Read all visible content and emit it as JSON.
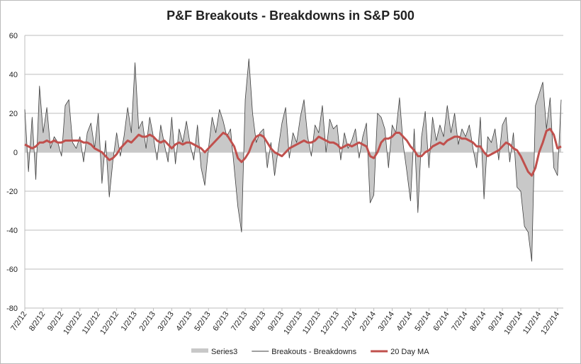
{
  "chart_data": {
    "type": "line",
    "title": "P&F Breakouts - Breakdowns in S&P 500",
    "categories": [
      "7/2/12",
      null,
      null,
      null,
      null,
      "8/2/12",
      null,
      null,
      null,
      null,
      "9/2/12",
      null,
      null,
      null,
      null,
      "10/2/12",
      null,
      null,
      null,
      null,
      "11/2/12",
      null,
      null,
      null,
      null,
      "12/2/12",
      null,
      null,
      null,
      null,
      "1/2/13",
      null,
      null,
      null,
      null,
      "2/2/13",
      null,
      null,
      null,
      null,
      "3/2/13",
      null,
      null,
      null,
      null,
      "4/2/13",
      null,
      null,
      null,
      null,
      "5/2/13",
      null,
      null,
      null,
      null,
      "6/2/13",
      null,
      null,
      null,
      null,
      "7/2/13",
      null,
      null,
      null,
      null,
      "8/2/13",
      null,
      null,
      null,
      null,
      "9/2/13",
      null,
      null,
      null,
      null,
      "10/2/13",
      null,
      null,
      null,
      null,
      "11/2/13",
      null,
      null,
      null,
      null,
      "12/2/13",
      null,
      null,
      null,
      null,
      "1/2/14",
      null,
      null,
      null,
      null,
      "2/2/14",
      null,
      null,
      null,
      null,
      "3/2/14",
      null,
      null,
      null,
      null,
      "4/2/14",
      null,
      null,
      null,
      null,
      "5/2/14",
      null,
      null,
      null,
      null,
      "6/2/14",
      null,
      null,
      null,
      null,
      "7/2/14",
      null,
      null,
      null,
      null,
      "8/2/14",
      null,
      null,
      null,
      null,
      "9/2/14",
      null,
      null,
      null,
      null,
      "10/2/14",
      null,
      null,
      null,
      null,
      "11/2/14",
      null,
      null,
      null,
      null,
      "12/2/14",
      null
    ],
    "series": [
      {
        "name": "Series3",
        "color": "#c8c8c8",
        "kind": "area",
        "values": [
          22,
          -10,
          18,
          -14,
          34,
          10,
          23,
          2,
          8,
          5,
          -2,
          24,
          27,
          5,
          2,
          8,
          -5,
          10,
          15,
          2,
          20,
          -16,
          6,
          -23,
          -4,
          10,
          -2,
          8,
          23,
          10,
          46,
          12,
          16,
          2,
          18,
          8,
          -4,
          14,
          4,
          -5,
          18,
          -6,
          12,
          5,
          16,
          4,
          -4,
          14,
          -8,
          -17,
          2,
          18,
          10,
          22,
          16,
          8,
          12,
          -8,
          -28,
          -41,
          27,
          48,
          20,
          5,
          10,
          12,
          -8,
          5,
          -12,
          2,
          15,
          23,
          -3,
          10,
          5,
          18,
          27,
          8,
          -2,
          14,
          10,
          24,
          0,
          17,
          12,
          14,
          -4,
          10,
          2,
          6,
          12,
          -3,
          8,
          15,
          -26,
          -22,
          20,
          18,
          12,
          -8,
          14,
          10,
          28,
          4,
          -10,
          -25,
          12,
          -31,
          8,
          21,
          -8,
          18,
          6,
          14,
          8,
          24,
          10,
          20,
          4,
          12,
          8,
          14,
          2,
          -8,
          18,
          -24,
          8,
          5,
          12,
          -4,
          14,
          18,
          -5,
          10,
          -18,
          -20,
          -38,
          -41,
          -56,
          24,
          30,
          36,
          12,
          28,
          -8,
          -12,
          27
        ]
      },
      {
        "name": "Breakouts - Breakdowns",
        "color": "#3f3f3f",
        "kind": "line",
        "values": [
          22,
          -10,
          18,
          -14,
          34,
          10,
          23,
          2,
          8,
          5,
          -2,
          24,
          27,
          5,
          2,
          8,
          -5,
          10,
          15,
          2,
          20,
          -16,
          6,
          -23,
          -4,
          10,
          -2,
          8,
          23,
          10,
          46,
          12,
          16,
          2,
          18,
          8,
          -4,
          14,
          4,
          -5,
          18,
          -6,
          12,
          5,
          16,
          4,
          -4,
          14,
          -8,
          -17,
          2,
          18,
          10,
          22,
          16,
          8,
          12,
          -8,
          -28,
          -41,
          27,
          48,
          20,
          5,
          10,
          12,
          -8,
          5,
          -12,
          2,
          15,
          23,
          -3,
          10,
          5,
          18,
          27,
          8,
          -2,
          14,
          10,
          24,
          0,
          17,
          12,
          14,
          -4,
          10,
          2,
          6,
          12,
          -3,
          8,
          15,
          -26,
          -22,
          20,
          18,
          12,
          -8,
          14,
          10,
          28,
          4,
          -10,
          -25,
          12,
          -31,
          8,
          21,
          -8,
          18,
          6,
          14,
          8,
          24,
          10,
          20,
          4,
          12,
          8,
          14,
          2,
          -8,
          18,
          -24,
          8,
          5,
          12,
          -4,
          14,
          18,
          -5,
          10,
          -18,
          -20,
          -38,
          -41,
          -56,
          24,
          30,
          36,
          12,
          28,
          -8,
          -12,
          27
        ]
      },
      {
        "name": "20 Day MA",
        "color": "#c0504d",
        "kind": "line",
        "values": [
          4,
          3,
          2,
          3,
          5,
          5,
          6,
          5,
          6,
          5,
          5,
          6,
          6,
          6,
          6,
          6,
          5,
          5,
          4,
          2,
          1,
          0,
          -2,
          -4,
          -3,
          -1,
          2,
          4,
          6,
          5,
          7,
          9,
          8,
          8,
          9,
          8,
          6,
          5,
          6,
          4,
          2,
          4,
          5,
          4,
          5,
          5,
          4,
          3,
          2,
          0,
          2,
          4,
          6,
          8,
          10,
          9,
          6,
          3,
          -3,
          -5,
          -3,
          0,
          5,
          8,
          9,
          8,
          5,
          2,
          0,
          -1,
          -2,
          0,
          2,
          3,
          4,
          5,
          6,
          5,
          5,
          6,
          8,
          7,
          6,
          5,
          5,
          4,
          2,
          3,
          4,
          3,
          4,
          5,
          4,
          3,
          -2,
          -3,
          0,
          5,
          7,
          7,
          8,
          10,
          10,
          8,
          6,
          3,
          1,
          -2,
          -2,
          0,
          1,
          3,
          4,
          5,
          4,
          6,
          7,
          8,
          8,
          7,
          7,
          6,
          5,
          3,
          3,
          0,
          -2,
          -1,
          0,
          1,
          3,
          5,
          4,
          2,
          1,
          -2,
          -6,
          -10,
          -12,
          -8,
          0,
          5,
          11,
          12,
          9,
          2,
          3
        ]
      }
    ],
    "ylim": [
      -80,
      60
    ],
    "yticks": [
      -80,
      -60,
      -40,
      -20,
      0,
      20,
      40,
      60
    ],
    "grid": true,
    "legend": "bottom"
  }
}
